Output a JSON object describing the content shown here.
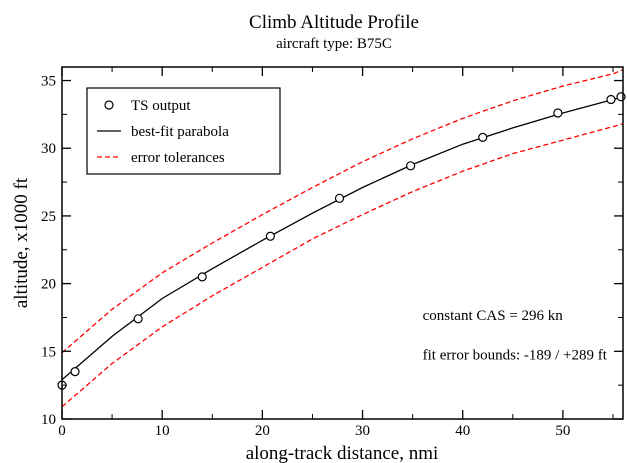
{
  "chart_data": {
    "type": "line",
    "title": "Climb Altitude Profile",
    "subtitle": "aircraft type: B75C",
    "xlabel": "along-track distance, nmi",
    "ylabel": "altitude, x1000 ft",
    "xlim": [
      0,
      56
    ],
    "ylim": [
      10,
      36
    ],
    "x_ticks": [
      0,
      10,
      20,
      30,
      40,
      50
    ],
    "y_ticks": [
      10,
      15,
      20,
      25,
      30,
      35
    ],
    "grid": false,
    "legend_position": "top-left",
    "legend": [
      {
        "label": "TS output",
        "style": "circle-marker",
        "color": "#000000"
      },
      {
        "label": "best-fit parabola",
        "style": "solid-line",
        "color": "#000000"
      },
      {
        "label": "error tolerances",
        "style": "dashed-line",
        "color": "#ff0000"
      }
    ],
    "series": [
      {
        "name": "TS output",
        "kind": "scatter",
        "color": "#000000",
        "points": [
          [
            0,
            12.5
          ],
          [
            1.3,
            13.5
          ],
          [
            7.6,
            17.4
          ],
          [
            14.0,
            20.5
          ],
          [
            20.8,
            23.5
          ],
          [
            27.7,
            26.3
          ],
          [
            34.8,
            28.7
          ],
          [
            42.0,
            30.8
          ],
          [
            49.5,
            32.6
          ],
          [
            54.8,
            33.6
          ],
          [
            55.8,
            33.8
          ]
        ]
      },
      {
        "name": "best-fit parabola",
        "kind": "line",
        "color": "#000000",
        "x": [
          0,
          5,
          10,
          15,
          20,
          25,
          30,
          35,
          40,
          45,
          50,
          55,
          56
        ],
        "y": [
          12.9,
          16.1,
          18.9,
          21.1,
          23.2,
          25.2,
          27.1,
          28.8,
          30.3,
          31.5,
          32.6,
          33.6,
          33.8
        ]
      },
      {
        "name": "error tolerances (upper)",
        "kind": "dashed",
        "color": "#ff0000",
        "x": [
          0,
          5,
          10,
          15,
          20,
          25,
          30,
          35,
          40,
          45,
          50,
          55,
          56
        ],
        "y": [
          14.9,
          18.1,
          20.8,
          23.0,
          25.1,
          27.1,
          29.0,
          30.7,
          32.2,
          33.5,
          34.6,
          35.5,
          35.8
        ]
      },
      {
        "name": "error tolerances (lower)",
        "kind": "dashed",
        "color": "#ff0000",
        "x": [
          0,
          5,
          10,
          15,
          20,
          25,
          30,
          35,
          40,
          45,
          50,
          55,
          56
        ],
        "y": [
          10.9,
          14.1,
          16.8,
          19.1,
          21.2,
          23.3,
          25.1,
          26.8,
          28.3,
          29.6,
          30.6,
          31.6,
          31.8
        ]
      }
    ],
    "annotations": [
      {
        "text": "constant CAS = 296 kn",
        "x": 36.0,
        "y": 17.3
      },
      {
        "text": "fit error bounds: -189 / +289 ft",
        "x": 36.0,
        "y": 14.4
      }
    ]
  }
}
